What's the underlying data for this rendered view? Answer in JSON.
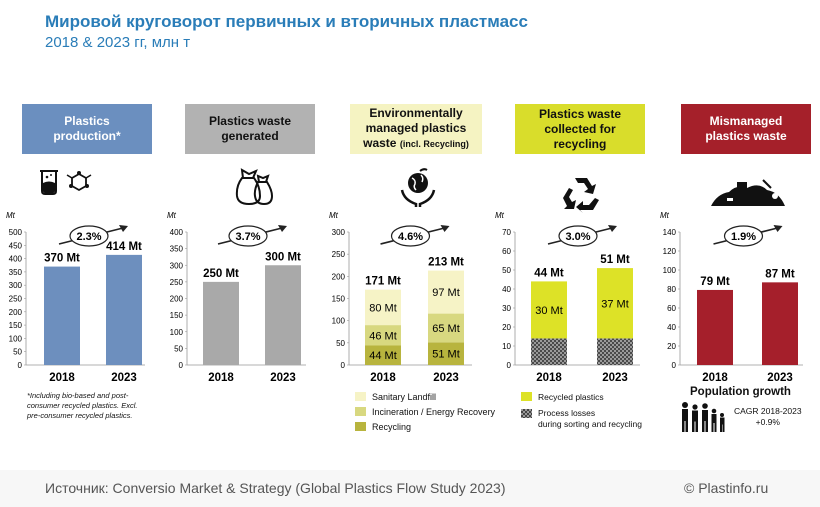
{
  "title": "Мировой круговорот первичных и вторичных пластмасс",
  "subtitle": "2018 & 2023 гг, млн т",
  "headers": [
    {
      "lines": [
        "Plastics",
        "production*"
      ],
      "bg": "#6b8fbf",
      "color": "#ffffff"
    },
    {
      "lines": [
        "Plastics waste",
        "generated"
      ],
      "bg": "#b2b2b2",
      "color": "#111111"
    },
    {
      "lines": [
        "Environmentally",
        "managed plastics",
        "waste"
      ],
      "small": "(incl. Recycling)",
      "bg": "#f5f3c2",
      "color": "#111111"
    },
    {
      "lines": [
        "Plastics waste",
        "collected for",
        "recycling"
      ],
      "bg": "#d9dd2b",
      "color": "#111111"
    },
    {
      "lines": [
        "Mismanaged",
        "plastics waste"
      ],
      "bg": "#a5202a",
      "color": "#ffffff"
    }
  ],
  "icons": [
    "beaker-icon",
    "molecule-icon",
    "money-bags-icon",
    "hands-globe-icon",
    "recycle-icon",
    "garbage-pile-icon"
  ],
  "chart_data": [
    {
      "type": "bar",
      "title": "Plastics production*",
      "unit": "Mt",
      "categories": [
        "2018",
        "2023"
      ],
      "ylim": [
        0,
        500
      ],
      "ticks": [
        0,
        50,
        100,
        150,
        200,
        250,
        300,
        350,
        400,
        450,
        500
      ],
      "series": [
        {
          "name": "Plastics production",
          "values": [
            370,
            414
          ],
          "color": "#6d8fbe"
        }
      ],
      "totals": [
        "370 Mt",
        "414 Mt"
      ],
      "cagr": "2.3%"
    },
    {
      "type": "bar",
      "title": "Plastics waste generated",
      "unit": "Mt",
      "categories": [
        "2018",
        "2023"
      ],
      "ylim": [
        0,
        400
      ],
      "ticks": [
        0,
        50,
        100,
        150,
        200,
        250,
        300,
        350,
        400
      ],
      "series": [
        {
          "name": "Plastics waste generated",
          "values": [
            250,
            300
          ],
          "color": "#a9a9a9"
        }
      ],
      "totals": [
        "250 Mt",
        "300 Mt"
      ],
      "cagr": "3.7%"
    },
    {
      "type": "bar",
      "title": "Environmentally managed plastics waste",
      "unit": "Mt",
      "categories": [
        "2018",
        "2023"
      ],
      "ylim": [
        0,
        300
      ],
      "ticks": [
        0,
        50,
        100,
        150,
        200,
        250,
        300
      ],
      "series": [
        {
          "name": "Recycling",
          "values": [
            44,
            51
          ],
          "labels": [
            "44 Mt",
            "51 Mt"
          ],
          "color": "#b8b43e"
        },
        {
          "name": "Incineration / Energy Recovery",
          "values": [
            46,
            65
          ],
          "labels": [
            "46 Mt",
            "65 Mt"
          ],
          "color": "#d8d880"
        },
        {
          "name": "Sanitary Landfill",
          "values": [
            80,
            97
          ],
          "labels": [
            "80 Mt",
            "97 Mt"
          ],
          "color": "#f6f3c6"
        }
      ],
      "totals": [
        "171 Mt",
        "213 Mt"
      ],
      "cagr": "4.6%"
    },
    {
      "type": "bar",
      "title": "Plastics waste collected for recycling",
      "unit": "Mt",
      "categories": [
        "2018",
        "2023"
      ],
      "ylim": [
        0,
        70
      ],
      "ticks": [
        0,
        10,
        20,
        30,
        40,
        50,
        60,
        70
      ],
      "series": [
        {
          "name": "Process losses during sorting and recycling",
          "values": [
            14,
            14
          ],
          "labels": [
            "",
            ""
          ],
          "color": "#6b6b6b",
          "pattern": true
        },
        {
          "name": "Recycled plastics",
          "values": [
            30,
            37
          ],
          "labels": [
            "30 Mt",
            "37 Mt"
          ],
          "color": "#dde227"
        }
      ],
      "totals": [
        "44 Mt",
        "51 Mt"
      ],
      "cagr": "3.0%"
    },
    {
      "type": "bar",
      "title": "Mismanaged plastics waste",
      "unit": "Mt",
      "categories": [
        "2018",
        "2023"
      ],
      "ylim": [
        0,
        140
      ],
      "ticks": [
        0,
        20,
        40,
        60,
        80,
        100,
        120,
        140
      ],
      "series": [
        {
          "name": "Mismanaged plastics waste",
          "values": [
            79,
            87
          ],
          "color": "#a51f2b"
        }
      ],
      "totals": [
        "79 Mt",
        "87 Mt"
      ],
      "cagr": "1.9%"
    }
  ],
  "note": "*Including bio-based and post-consumer recycled plastics. Excl. pre-consumer recycled plastics.",
  "legend_env": [
    {
      "label": "Sanitary Landfill",
      "color": "#f6f3c6"
    },
    {
      "label": "Incineration / Energy Recovery",
      "color": "#d8d880"
    },
    {
      "label": "Recycling",
      "color": "#b8b43e"
    }
  ],
  "legend_recycle": [
    {
      "label": "Recycled plastics",
      "color": "#dde227"
    },
    {
      "label": "Process losses",
      "label2": "during sorting and recycling",
      "color": "#6b6b6b"
    }
  ],
  "population": {
    "title": "Population growth",
    "line1": "CAGR 2018-2023",
    "line2": "+0.9%"
  },
  "source": "Источник: Conversio Market & Strategy (Global Plastics Flow Study 2023)",
  "copyright": "© Plastinfo.ru"
}
